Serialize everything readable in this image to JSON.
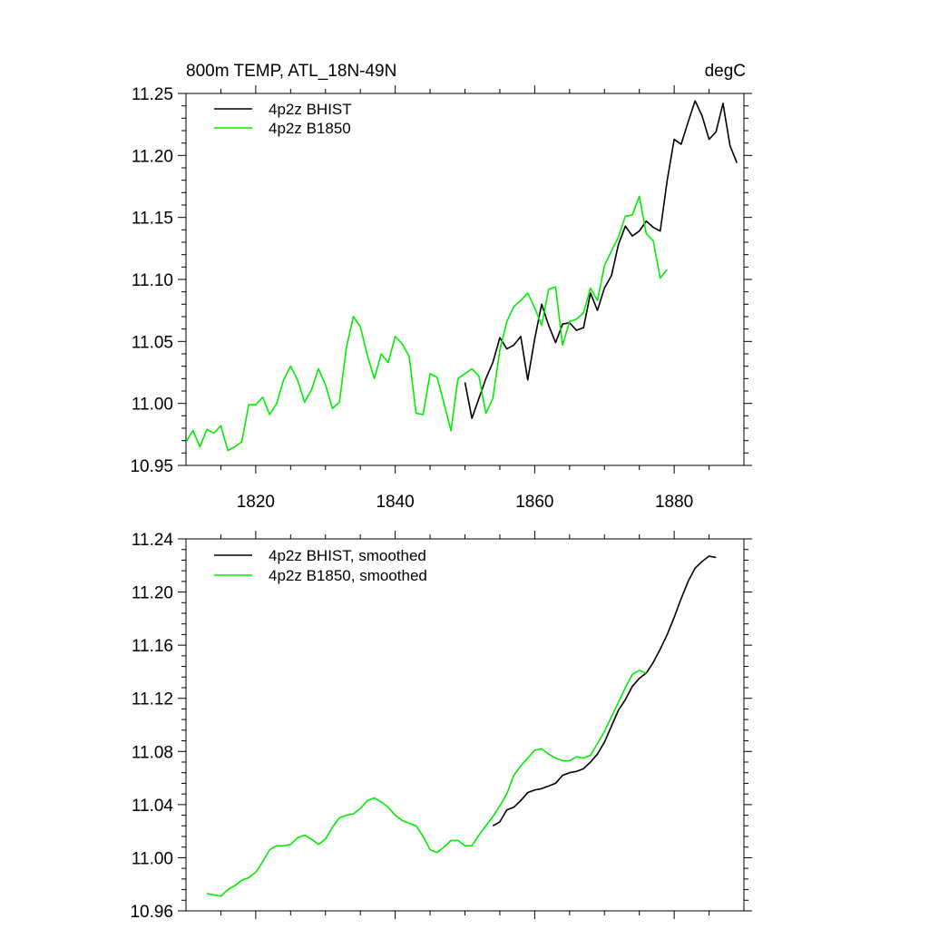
{
  "colors": {
    "bhist": "#000000",
    "b1850": "#00ee00",
    "axis": "#000000",
    "background": "#ffffff"
  },
  "chart_data": [
    {
      "type": "line",
      "title_left": "800m TEMP, ATL_18N-49N",
      "title_right": "degC",
      "xlim": [
        1810,
        1890
      ],
      "ylim": [
        10.95,
        11.25
      ],
      "xticks": [
        1820,
        1840,
        1860,
        1880
      ],
      "xtick_labels": [
        "1820",
        "1840",
        "1860",
        "1880"
      ],
      "yticks": [
        10.95,
        11.0,
        11.05,
        11.1,
        11.15,
        11.2,
        11.25
      ],
      "ytick_labels": [
        "10.95",
        "11.00",
        "11.05",
        "11.10",
        "11.15",
        "11.20",
        "11.25"
      ],
      "legend_position": "top-left",
      "series": [
        {
          "name": "4p2z BHIST",
          "color_key": "bhist",
          "x": [
            1850,
            1851,
            1852,
            1853,
            1854,
            1855,
            1856,
            1857,
            1858,
            1859,
            1860,
            1861,
            1862,
            1863,
            1864,
            1865,
            1866,
            1867,
            1868,
            1869,
            1870,
            1871,
            1872,
            1873,
            1874,
            1875,
            1876,
            1877,
            1878,
            1879,
            1880,
            1881,
            1882,
            1883,
            1884,
            1885,
            1886,
            1887,
            1888,
            1889
          ],
          "y": [
            11.017,
            10.988,
            11.004,
            11.02,
            11.033,
            11.053,
            11.044,
            11.047,
            11.054,
            11.019,
            11.052,
            11.08,
            11.063,
            11.049,
            11.064,
            11.065,
            11.059,
            11.061,
            11.089,
            11.075,
            11.093,
            11.103,
            11.128,
            11.143,
            11.135,
            11.139,
            11.147,
            11.142,
            11.139,
            11.18,
            11.213,
            11.209,
            11.227,
            11.244,
            11.232,
            11.213,
            11.219,
            11.242,
            11.208,
            11.194
          ]
        },
        {
          "name": "4p2z B1850",
          "color_key": "b1850",
          "x": [
            1810,
            1811,
            1812,
            1813,
            1814,
            1815,
            1816,
            1817,
            1818,
            1819,
            1820,
            1821,
            1822,
            1823,
            1824,
            1825,
            1826,
            1827,
            1828,
            1829,
            1830,
            1831,
            1832,
            1833,
            1834,
            1835,
            1836,
            1837,
            1838,
            1839,
            1840,
            1841,
            1842,
            1843,
            1844,
            1845,
            1846,
            1847,
            1848,
            1849,
            1850,
            1851,
            1852,
            1853,
            1854,
            1855,
            1856,
            1857,
            1858,
            1859,
            1860,
            1861,
            1862,
            1863,
            1864,
            1865,
            1866,
            1867,
            1868,
            1869,
            1870,
            1871,
            1872,
            1873,
            1874,
            1875,
            1876,
            1877,
            1878,
            1879
          ],
          "y": [
            10.969,
            10.978,
            10.965,
            10.979,
            10.976,
            10.982,
            10.962,
            10.965,
            10.969,
            10.999,
            10.999,
            11.005,
            10.991,
            11.0,
            11.019,
            11.03,
            11.019,
            11.001,
            11.011,
            11.028,
            11.015,
            10.996,
            11.001,
            11.045,
            11.07,
            11.062,
            11.039,
            11.02,
            11.04,
            11.033,
            11.054,
            11.048,
            11.038,
            10.992,
            10.991,
            11.024,
            11.021,
            11.0,
            10.978,
            11.02,
            11.024,
            11.028,
            11.022,
            10.992,
            11.004,
            11.043,
            11.066,
            11.078,
            11.083,
            11.089,
            11.077,
            11.063,
            11.092,
            11.094,
            11.047,
            11.066,
            11.068,
            11.073,
            11.093,
            11.083,
            11.111,
            11.123,
            11.134,
            11.151,
            11.152,
            11.167,
            11.137,
            11.131,
            11.101,
            11.108
          ]
        }
      ]
    },
    {
      "type": "line",
      "title_left": "",
      "title_right": "",
      "xlim": [
        1810,
        1890
      ],
      "ylim": [
        10.96,
        11.24
      ],
      "xticks": [
        1820,
        1840,
        1860,
        1880
      ],
      "yticks": [
        10.96,
        11.0,
        11.04,
        11.08,
        11.12,
        11.16,
        11.2,
        11.24
      ],
      "ytick_labels": [
        "10.96",
        "11.00",
        "11.04",
        "11.08",
        "11.12",
        "11.16",
        "11.20",
        "11.24"
      ],
      "legend_position": "top-left",
      "series": [
        {
          "name": "4p2z BHIST, smoothed",
          "color_key": "bhist",
          "x": [
            1854,
            1855,
            1856,
            1857,
            1858,
            1859,
            1860,
            1861,
            1862,
            1863,
            1864,
            1865,
            1866,
            1867,
            1868,
            1869,
            1870,
            1871,
            1872,
            1873,
            1874,
            1875,
            1876,
            1877,
            1878,
            1879,
            1880,
            1881,
            1882,
            1883,
            1884,
            1885,
            1886
          ],
          "y": [
            11.024,
            11.027,
            11.036,
            11.038,
            11.043,
            11.049,
            11.051,
            11.052,
            11.054,
            11.056,
            11.062,
            11.064,
            11.065,
            11.067,
            11.072,
            11.078,
            11.087,
            11.099,
            11.111,
            11.119,
            11.129,
            11.135,
            11.139,
            11.147,
            11.157,
            11.168,
            11.181,
            11.195,
            11.208,
            11.218,
            11.223,
            11.227,
            11.226
          ]
        },
        {
          "name": "4p2z B1850, smoothed",
          "color_key": "b1850",
          "x": [
            1813,
            1814,
            1815,
            1816,
            1817,
            1818,
            1819,
            1820,
            1821,
            1822,
            1823,
            1824,
            1825,
            1826,
            1827,
            1828,
            1829,
            1830,
            1831,
            1832,
            1833,
            1834,
            1835,
            1836,
            1837,
            1838,
            1839,
            1840,
            1841,
            1842,
            1843,
            1844,
            1845,
            1846,
            1847,
            1848,
            1849,
            1850,
            1851,
            1852,
            1853,
            1854,
            1855,
            1856,
            1857,
            1858,
            1859,
            1860,
            1861,
            1862,
            1863,
            1864,
            1865,
            1866,
            1867,
            1868,
            1869,
            1870,
            1871,
            1872,
            1873,
            1874,
            1875,
            1876
          ],
          "y": [
            10.973,
            10.972,
            10.971,
            10.976,
            10.979,
            10.983,
            10.985,
            10.989,
            10.997,
            11.006,
            11.009,
            11.009,
            11.01,
            11.015,
            11.017,
            11.014,
            11.01,
            11.014,
            11.023,
            11.03,
            11.032,
            11.033,
            11.037,
            11.043,
            11.045,
            11.042,
            11.038,
            11.032,
            11.028,
            11.026,
            11.024,
            11.016,
            11.006,
            11.004,
            11.008,
            11.013,
            11.013,
            11.009,
            11.009,
            11.017,
            11.024,
            11.031,
            11.039,
            11.048,
            11.062,
            11.069,
            11.075,
            11.081,
            11.082,
            11.078,
            11.075,
            11.073,
            11.073,
            11.076,
            11.075,
            11.077,
            11.086,
            11.095,
            11.106,
            11.117,
            11.128,
            11.138,
            11.141,
            11.139
          ]
        }
      ]
    }
  ]
}
